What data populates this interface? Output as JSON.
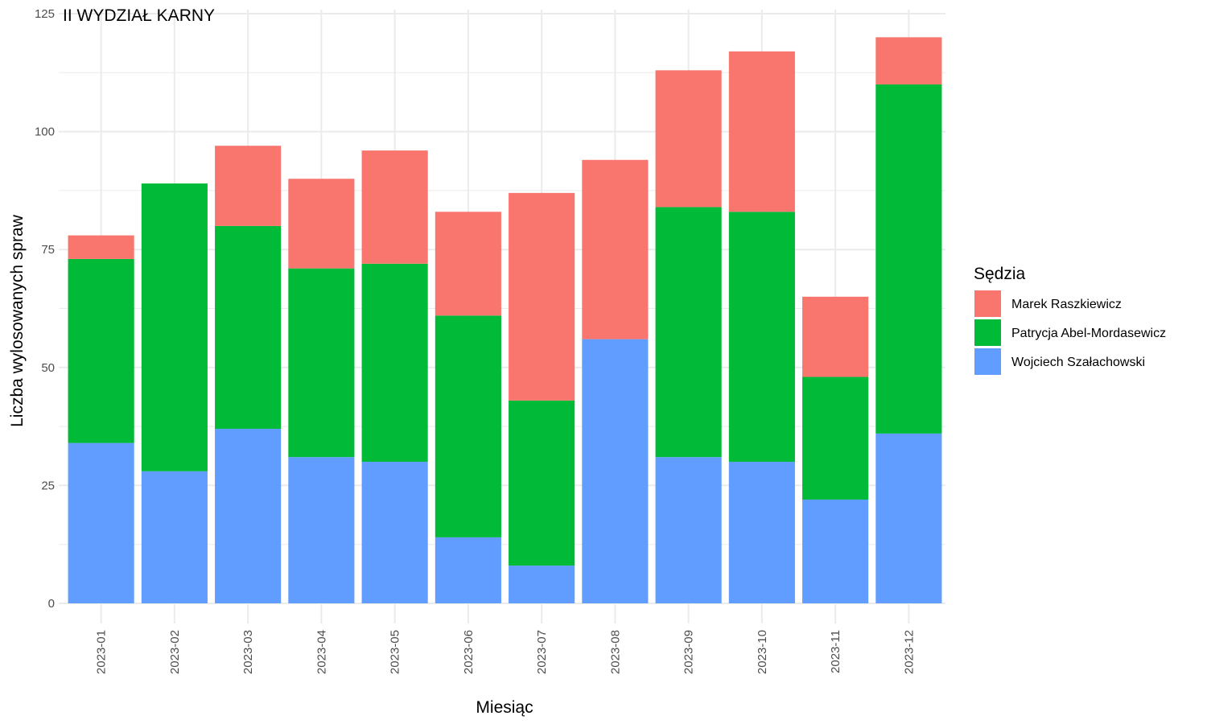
{
  "chart_data": {
    "type": "bar",
    "stacked": true,
    "title": "II WYDZIAŁ KARNY",
    "xlabel": "Miesiąc",
    "ylabel": "Liczba wylosowanych spraw",
    "ylim": [
      0,
      125
    ],
    "yticks": [
      0,
      25,
      50,
      75,
      100,
      125
    ],
    "grid": true,
    "legend": {
      "title": "Sędzia",
      "position": "right"
    },
    "categories": [
      "2023-01",
      "2023-02",
      "2023-03",
      "2023-04",
      "2023-05",
      "2023-06",
      "2023-07",
      "2023-08",
      "2023-09",
      "2023-10",
      "2023-11",
      "2023-12"
    ],
    "series": [
      {
        "name": "Marek Raszkiewicz",
        "color": "#F8766D",
        "values": [
          5,
          0,
          17,
          19,
          24,
          22,
          44,
          38,
          29,
          34,
          17,
          10
        ]
      },
      {
        "name": "Patrycja Abel-Mordasewicz",
        "color": "#00BA38",
        "values": [
          39,
          61,
          43,
          40,
          42,
          47,
          35,
          0,
          53,
          53,
          26,
          74
        ]
      },
      {
        "name": "Wojciech Szałachowski",
        "color": "#619CFF",
        "values": [
          34,
          28,
          37,
          31,
          30,
          14,
          8,
          56,
          31,
          30,
          22,
          36
        ]
      }
    ],
    "stack_order_bottom_to_top": [
      "Wojciech Szałachowski",
      "Patrycja Abel-Mordasewicz",
      "Marek Raszkiewicz"
    ]
  }
}
